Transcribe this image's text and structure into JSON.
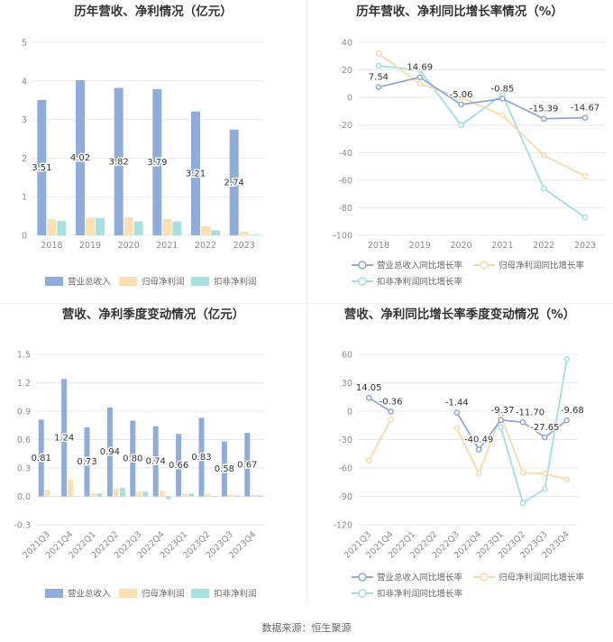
{
  "source_text": "数据来源：恒生聚源",
  "colors": {
    "revenue": "#8eaddc",
    "net_profit": "#fde0b0",
    "deducted_profit": "#a6e1e0",
    "revenue_line": "#8fa8d6",
    "net_line": "#f9d9a6",
    "deducted_line": "#9fdfe3",
    "axis_text": "#8c8c8c",
    "grid": "#e8e8e8"
  },
  "chart_data": [
    {
      "type": "bar",
      "title": "历年营收、净利情况（亿元）",
      "categories": [
        "2018",
        "2019",
        "2020",
        "2021",
        "2022",
        "2023"
      ],
      "ylim": [
        0,
        5
      ],
      "yticks": [
        0,
        1,
        2,
        3,
        4,
        5
      ],
      "series": [
        {
          "name": "营业总收入",
          "values": [
            3.51,
            4.02,
            3.82,
            3.79,
            3.21,
            2.74
          ],
          "labels": [
            "3.51",
            "4.02",
            "3.82",
            "3.79",
            "3.21",
            "2.74"
          ]
        },
        {
          "name": "归母净利润",
          "values": [
            0.42,
            0.46,
            0.47,
            0.42,
            0.24,
            0.1
          ]
        },
        {
          "name": "扣非净利润",
          "values": [
            0.37,
            0.45,
            0.36,
            0.36,
            0.13,
            0.02
          ]
        }
      ]
    },
    {
      "type": "line",
      "title": "历年营收、净利同比增长率情况（%）",
      "categories": [
        "2018",
        "2019",
        "2020",
        "2021",
        "2022",
        "2023"
      ],
      "ylim": [
        -100,
        40
      ],
      "yticks": [
        -100,
        -80,
        -60,
        -40,
        -20,
        0,
        20,
        40
      ],
      "series": [
        {
          "name": "营业总收入同比增长率",
          "values": [
            7.54,
            14.69,
            -5.06,
            -0.85,
            -15.39,
            -14.67
          ],
          "labels": [
            "7.54",
            "14.69",
            "-5.06",
            "-0.85",
            "-15.39",
            "-14.67"
          ]
        },
        {
          "name": "归母净利润同比增长率",
          "values": [
            32,
            10,
            0,
            -13,
            -42,
            -57
          ]
        },
        {
          "name": "扣非净利润同比增长率",
          "values": [
            23,
            20,
            -20,
            2,
            -66,
            -87
          ]
        }
      ]
    },
    {
      "type": "bar",
      "title": "营收、净利季度变动情况（亿元）",
      "categories": [
        "2021Q3",
        "2021Q4",
        "2022Q1",
        "2022Q2",
        "2022Q3",
        "2022Q4",
        "2023Q1",
        "2023Q2",
        "2023Q3",
        "2023Q4"
      ],
      "ylim": [
        -0.3,
        1.5
      ],
      "yticks": [
        -0.3,
        0,
        0.3,
        0.6,
        0.9,
        1.2,
        1.5
      ],
      "series": [
        {
          "name": "营业总收入",
          "values": [
            0.81,
            1.24,
            0.73,
            0.94,
            0.8,
            0.74,
            0.66,
            0.83,
            0.58,
            0.67
          ],
          "labels": [
            "0.81",
            "1.24",
            "0.73",
            "0.94",
            "0.80",
            "0.74",
            "0.66",
            "0.83",
            "0.58",
            "0.67"
          ]
        },
        {
          "name": "归母净利润",
          "values": [
            0.07,
            0.18,
            0.03,
            0.08,
            0.05,
            0.06,
            0.03,
            0.03,
            0.02,
            0.02
          ]
        },
        {
          "name": "扣非净利润",
          "values": [
            0.0,
            0.0,
            0.03,
            0.09,
            0.05,
            -0.03,
            0.03,
            0.0,
            0.01,
            0.01
          ]
        }
      ]
    },
    {
      "type": "line",
      "title": "营收、净利同比增长率季度变动情况（%）",
      "categories": [
        "2021Q3",
        "2021Q4",
        "2022Q1",
        "2022Q2",
        "2022Q3",
        "2022Q4",
        "2023Q1",
        "2023Q2",
        "2023Q3",
        "2023Q4"
      ],
      "ylim": [
        -120,
        60
      ],
      "yticks": [
        -120,
        -90,
        -60,
        -30,
        0,
        30,
        60
      ],
      "series": [
        {
          "name": "营业总收入同比增长率",
          "values": [
            14.05,
            -0.36,
            null,
            null,
            -1.44,
            -40.49,
            -9.37,
            -11.7,
            -27.65,
            -9.68
          ],
          "labels": [
            "14.05",
            "-0.36",
            null,
            null,
            "-1.44",
            "-40.49",
            "-9.37",
            "-11.70",
            "-27.65",
            "-9.68"
          ]
        },
        {
          "name": "归母净利润同比增长率",
          "values": [
            -52,
            -9,
            null,
            null,
            -18,
            -66,
            -5,
            -65,
            -66,
            -72
          ]
        },
        {
          "name": "扣非净利润同比增长率",
          "values": [
            null,
            null,
            null,
            null,
            null,
            null,
            -17,
            -97,
            -82,
            55
          ]
        }
      ]
    }
  ]
}
